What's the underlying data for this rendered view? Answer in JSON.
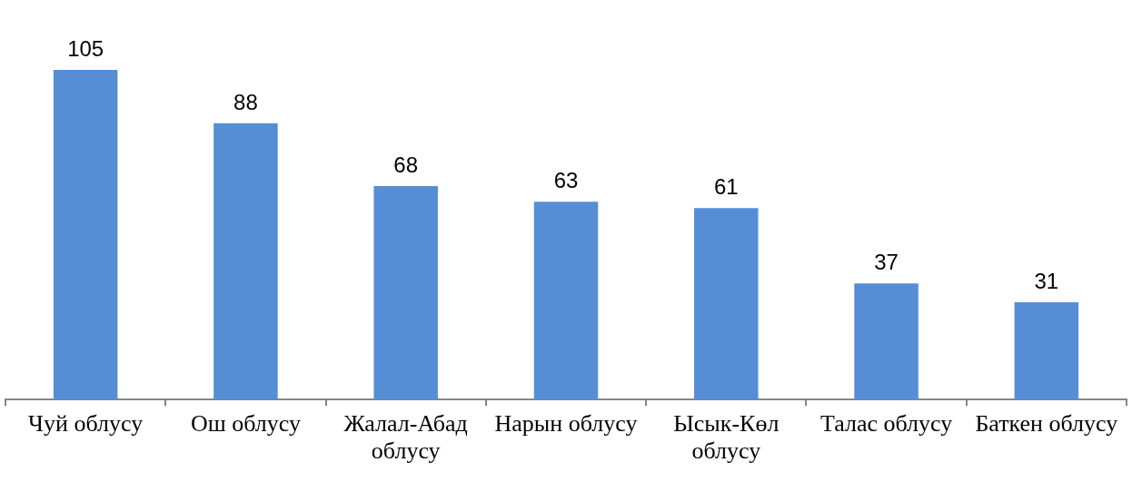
{
  "chart_data": {
    "type": "bar",
    "categories": [
      "Чуй облусу",
      "Ош облусу",
      "Жалал-Абад облусу",
      "Нарын облусу",
      "Ысык-Көл облусу",
      "Талас облусу",
      "Баткен облусу"
    ],
    "values": [
      105,
      88,
      68,
      63,
      61,
      37,
      31
    ],
    "color": "#558ed5",
    "data_labels": true
  }
}
